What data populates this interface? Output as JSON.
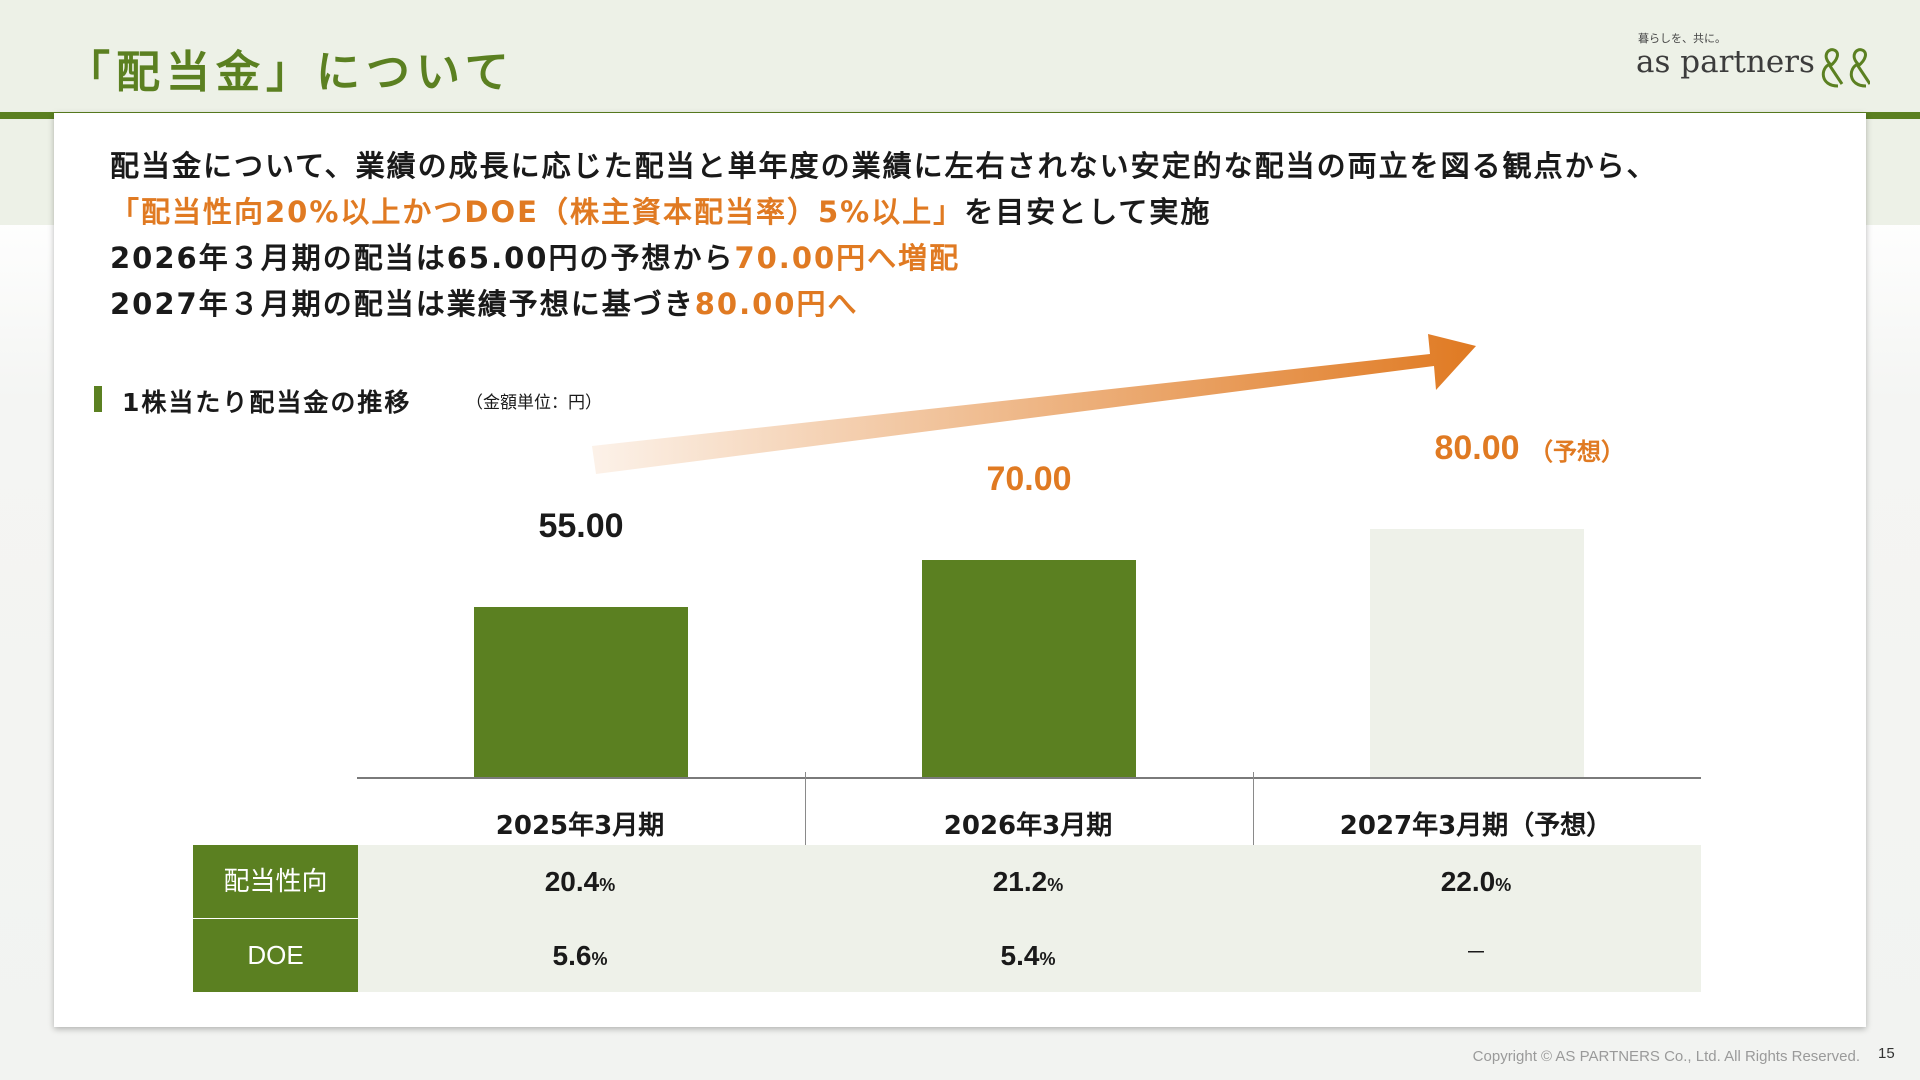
{
  "header": {
    "title": "「配当金」について",
    "logo_tagline": "暮らしを、共に。",
    "logo_text": "as partners",
    "logo_icon": "double-ampersand-logo-icon"
  },
  "message": {
    "line1": "配当金について、業績の成長に応じた配当と単年度の業績に左右されない安定的な配当の両立を図る観点から、",
    "line2_highlight": "「配当性向20%以上かつDOE（株主資本配当率）5%以上」",
    "line2_rest": "を目安として実施",
    "line3_prefix": "2026年３月期の配当は65.00円の予想から",
    "line3_highlight": "70.00円へ増配",
    "line4_prefix": "2027年３月期の配当は業績予想に基づき",
    "line4_highlight": "80.00円へ"
  },
  "section": {
    "title": "1株当たり配当金の推移",
    "unit_note": "（金額単位：円）"
  },
  "chart_data": {
    "type": "bar",
    "title": "1株当たり配当金の推移",
    "unit": "円",
    "categories": [
      "2025年3月期",
      "2026年3月期",
      "2027年3月期（予想）"
    ],
    "values": [
      55.0,
      70.0,
      80.0
    ],
    "value_labels": [
      "55.00",
      "70.00",
      "80.00"
    ],
    "forecast_tag": "（予想）",
    "bar_colors": [
      "#5b8021",
      "#5b8021",
      "#eef1e9"
    ],
    "label_colors": [
      "#1a1a1a",
      "#e07a22",
      "#e07a22"
    ],
    "accent_color": "#e07a22",
    "ylim": [
      0,
      80
    ],
    "grid": false
  },
  "table": {
    "rows": [
      {
        "label": "配当性向",
        "values": [
          "20.4",
          "21.2",
          "22.0"
        ],
        "unit": "%"
      },
      {
        "label": "DOE",
        "values": [
          "5.6",
          "5.4",
          "－"
        ],
        "unit": "%"
      }
    ]
  },
  "footer": {
    "copyright": "Copyright © AS PARTNERS Co., Ltd. All Rights Reserved.",
    "page_number": "15"
  }
}
